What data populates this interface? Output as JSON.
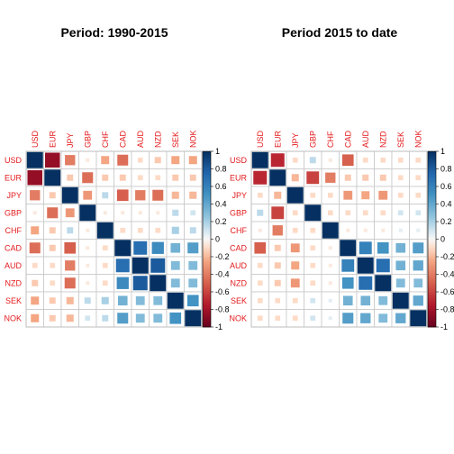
{
  "chart_data": [
    {
      "type": "heatmap",
      "title": "Period: 1990-2015",
      "variables": [
        "USD",
        "EUR",
        "JPY",
        "GBP",
        "CHF",
        "CAD",
        "AUD",
        "NZD",
        "SEK",
        "NOK"
      ],
      "method": "square",
      "colorbar": {
        "range": [
          -1,
          1
        ],
        "ticks": [
          "1",
          "0.8",
          "0.6",
          "0.4",
          "0.2",
          "0",
          "-0.2",
          "-0.4",
          "-0.6",
          "-0.8",
          "-1"
        ]
      },
      "matrix": [
        [
          1,
          -0.85,
          -0.4,
          -0.05,
          -0.25,
          -0.45,
          -0.1,
          -0.15,
          -0.25,
          -0.25
        ],
        [
          -0.85,
          1,
          -0.15,
          -0.45,
          -0.15,
          -0.15,
          -0.1,
          -0.1,
          -0.15,
          -0.15
        ],
        [
          -0.4,
          -0.15,
          1,
          -0.3,
          0.15,
          -0.5,
          -0.4,
          -0.45,
          -0.2,
          -0.2
        ],
        [
          -0.05,
          -0.45,
          -0.3,
          1,
          -0.05,
          -0.05,
          -0.05,
          -0.05,
          0.15,
          0.1
        ],
        [
          -0.25,
          -0.15,
          0.15,
          -0.05,
          1,
          -0.1,
          -0.1,
          -0.1,
          0.2,
          0.15
        ],
        [
          -0.45,
          -0.15,
          -0.5,
          -0.05,
          -0.1,
          1,
          0.7,
          0.55,
          0.35,
          0.45
        ],
        [
          -0.1,
          -0.1,
          -0.4,
          -0.05,
          -0.1,
          0.7,
          1,
          0.8,
          0.3,
          0.3
        ],
        [
          -0.15,
          -0.1,
          -0.45,
          -0.05,
          -0.1,
          0.55,
          0.8,
          1,
          0.3,
          0.3
        ],
        [
          -0.25,
          -0.15,
          -0.2,
          0.15,
          0.2,
          0.35,
          0.3,
          0.3,
          1,
          0.5
        ],
        [
          -0.25,
          -0.15,
          -0.2,
          0.1,
          0.15,
          0.45,
          0.3,
          0.3,
          0.5,
          1
        ]
      ]
    },
    {
      "type": "heatmap",
      "title": "Period 2015 to date",
      "variables": [
        "USD",
        "EUR",
        "JPY",
        "GBP",
        "CHF",
        "CAD",
        "AUD",
        "NZD",
        "SEK",
        "NOK"
      ],
      "method": "square",
      "colorbar": {
        "range": [
          -1,
          1
        ],
        "ticks": [
          "1",
          "0.8",
          "0.6",
          "0.4",
          "0.2",
          "0",
          "-0.2",
          "-0.4",
          "-0.6",
          "-0.8",
          "-1"
        ]
      },
      "matrix": [
        [
          1,
          -0.7,
          -0.1,
          0.15,
          -0.05,
          -0.5,
          -0.1,
          -0.1,
          -0.1,
          -0.1
        ],
        [
          -0.7,
          1,
          -0.2,
          -0.6,
          -0.4,
          -0.15,
          -0.15,
          -0.15,
          -0.1,
          -0.1
        ],
        [
          -0.1,
          -0.2,
          1,
          -0.1,
          -0.1,
          -0.3,
          -0.25,
          -0.3,
          -0.1,
          -0.1
        ],
        [
          0.15,
          -0.6,
          -0.1,
          1,
          -0.1,
          -0.1,
          -0.1,
          -0.1,
          0.1,
          0.1
        ],
        [
          -0.05,
          -0.4,
          -0.1,
          -0.1,
          1,
          -0.05,
          -0.05,
          -0.05,
          0.05,
          0.05
        ],
        [
          -0.5,
          -0.15,
          -0.3,
          -0.1,
          -0.05,
          1,
          0.6,
          0.5,
          0.35,
          0.45
        ],
        [
          -0.1,
          -0.15,
          -0.25,
          -0.1,
          -0.05,
          0.6,
          1,
          0.7,
          0.35,
          0.4
        ],
        [
          -0.1,
          -0.15,
          -0.3,
          -0.1,
          -0.05,
          0.5,
          0.7,
          1,
          0.3,
          0.3
        ],
        [
          -0.1,
          -0.1,
          -0.1,
          0.1,
          0.05,
          0.35,
          0.35,
          0.3,
          1,
          0.4
        ],
        [
          -0.1,
          -0.1,
          -0.1,
          0.1,
          0.05,
          0.45,
          0.4,
          0.3,
          0.4,
          1
        ]
      ]
    }
  ]
}
